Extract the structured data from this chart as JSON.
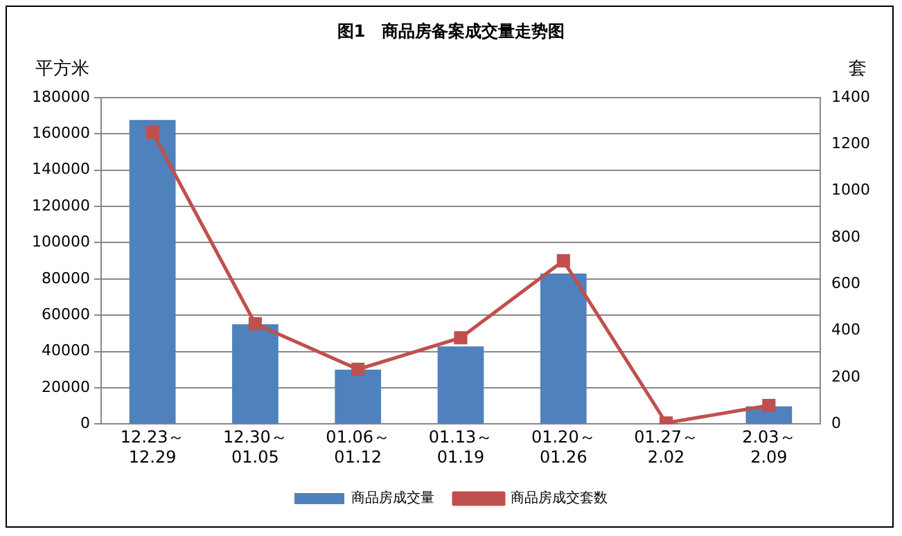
{
  "chart_data": {
    "type": "bar",
    "title": "图1　商品房备案成交量走势图",
    "ylabel": "平方米",
    "y2label": "套",
    "categories": [
      "12.23～\n12.29",
      "12.30～\n01.05",
      "01.06～\n01.12",
      "01.13～\n01.19",
      "01.20～\n01.26",
      "01.27～\n2.02",
      "2.03～\n2.09"
    ],
    "series": [
      {
        "name": "商品房成交量",
        "color": "#4f81bd",
        "values": [
          167600,
          55000,
          30000,
          42800,
          83000,
          0,
          9800
        ]
      },
      {
        "name": "商品房成交套数",
        "type": "line",
        "axis": "y2",
        "color": "#c0504d",
        "marker": "square",
        "values": [
          1250,
          430,
          235,
          370,
          700,
          5,
          80
        ]
      }
    ],
    "ylim": [
      0,
      180000
    ],
    "yticks": [
      0,
      20000,
      40000,
      60000,
      80000,
      100000,
      120000,
      140000,
      160000,
      180000
    ],
    "y2lim": [
      0,
      1400
    ],
    "y2ticks": [
      0,
      200,
      400,
      600,
      800,
      1000,
      1200,
      1400
    ],
    "grid": "y",
    "legend": "bottom"
  }
}
